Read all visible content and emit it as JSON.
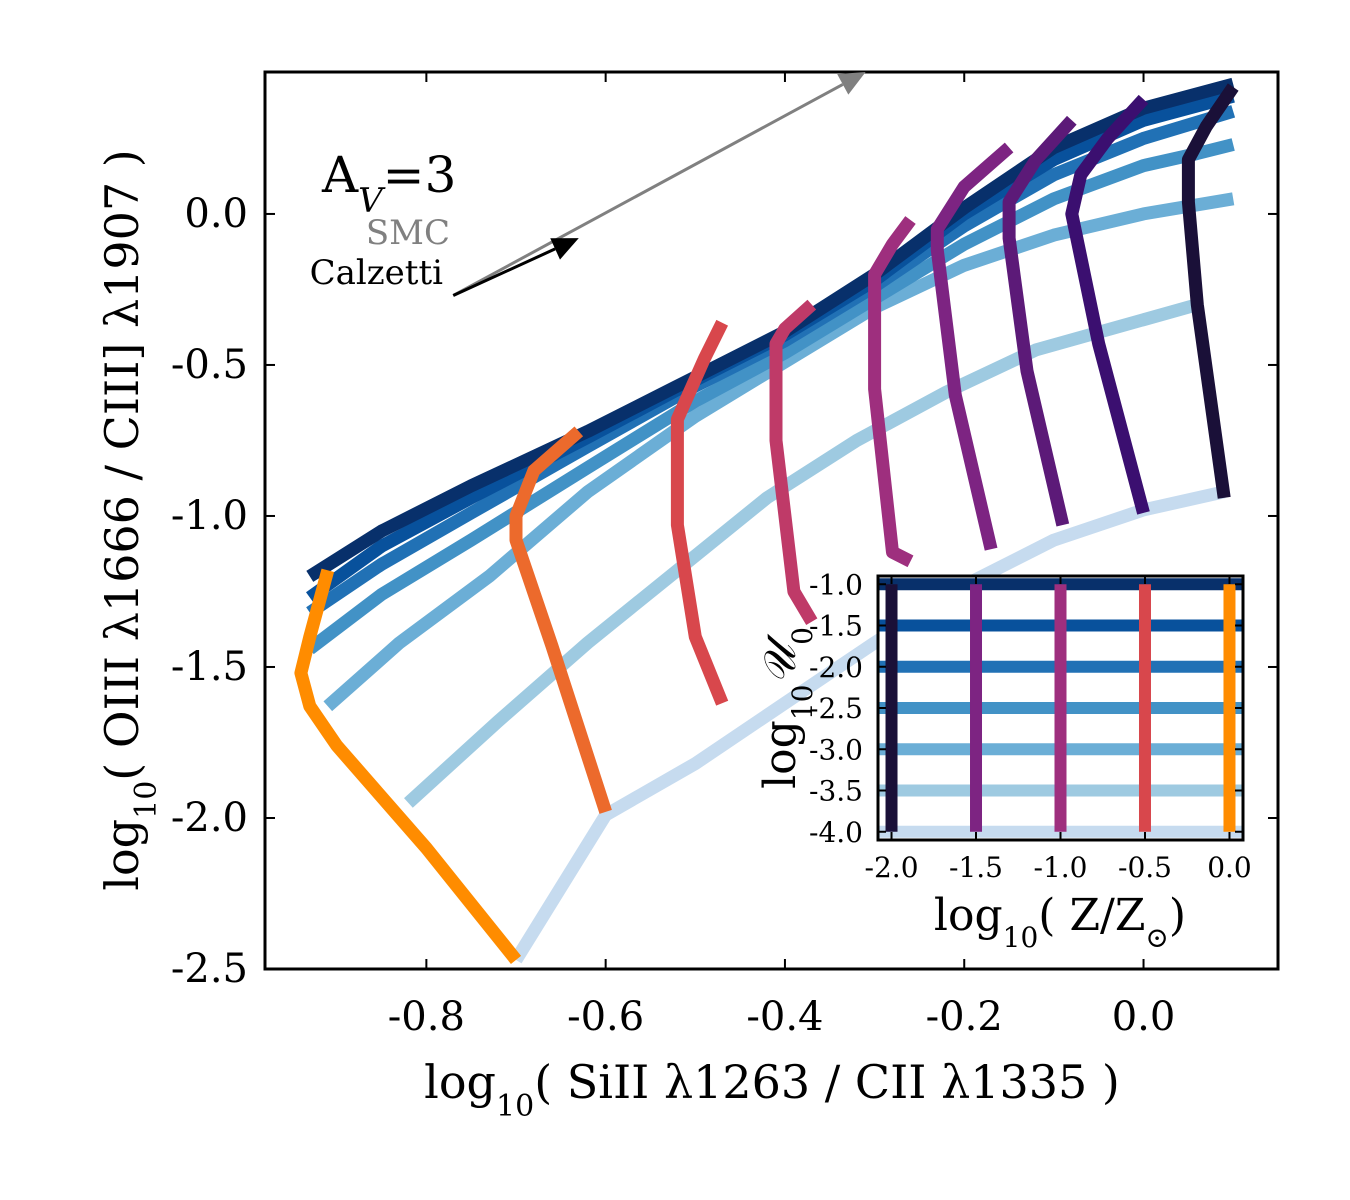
{
  "chart_data": {
    "type": "line",
    "main": {
      "xlabel": {
        "pre": "log",
        "sub": "10",
        "post": "( SiII λ1263 / CII λ1335 )"
      },
      "ylabel": {
        "pre": "log",
        "sub": "10",
        "post": "( OIII λ1666 / CIII] λ1907 )"
      },
      "xlim": [
        -0.98,
        0.15
      ],
      "ylim": [
        -2.5,
        0.47
      ],
      "xticks": [
        -0.8,
        -0.6,
        -0.4,
        -0.2,
        0.0
      ],
      "xtick_labels": [
        "-0.8",
        "-0.6",
        "-0.4",
        "-0.2",
        "0.0"
      ],
      "yticks": [
        -2.5,
        -2.0,
        -1.5,
        -1.0,
        -0.5,
        0.0
      ],
      "ytick_labels": [
        "-2.5",
        "-2.0",
        "-1.5",
        "-1.0",
        "-0.5",
        "0.0"
      ]
    },
    "annotation": {
      "av": {
        "pre": "A",
        "sub": "V",
        "post": "=3"
      },
      "smc_label": "SMC",
      "calzetti_label": "Calzetti",
      "smc_arrow": {
        "from": [
          -0.77,
          -0.27
        ],
        "to": [
          -0.31,
          0.47
        ]
      },
      "calzetti_arrow": {
        "from": [
          -0.77,
          -0.27
        ],
        "to": [
          -0.63,
          -0.08
        ]
      }
    },
    "colors": {
      "u": [
        "#08306b",
        "#08519c",
        "#2171b5",
        "#4292c6",
        "#6baed6",
        "#9ecae1",
        "#c6dbef"
      ],
      "z": [
        "#1a1038",
        "#3b0f70",
        "#5c1a78",
        "#7d2482",
        "#9e2f7e",
        "#bf3a68",
        "#d8474c",
        "#ec6a2c",
        "#ff8c00"
      ]
    },
    "u_series": [
      {
        "x": [
          -0.93,
          -0.85,
          -0.75,
          -0.62,
          -0.5,
          -0.4,
          -0.3,
          -0.2,
          -0.1,
          0.0,
          0.1
        ],
        "y": [
          -1.2,
          -1.05,
          -0.9,
          -0.72,
          -0.54,
          -0.39,
          -0.2,
          0.02,
          0.22,
          0.35,
          0.43
        ]
      },
      {
        "x": [
          -0.93,
          -0.85,
          -0.75,
          -0.62,
          -0.5,
          -0.4,
          -0.3,
          -0.2,
          -0.1,
          0.0,
          0.1
        ],
        "y": [
          -1.27,
          -1.1,
          -0.94,
          -0.74,
          -0.55,
          -0.4,
          -0.22,
          0.0,
          0.18,
          0.31,
          0.39
        ]
      },
      {
        "x": [
          -0.93,
          -0.85,
          -0.75,
          -0.62,
          -0.5,
          -0.4,
          -0.3,
          -0.2,
          -0.1,
          0.0,
          0.1
        ],
        "y": [
          -1.32,
          -1.16,
          -0.99,
          -0.77,
          -0.57,
          -0.42,
          -0.24,
          -0.04,
          0.13,
          0.25,
          0.34
        ]
      },
      {
        "x": [
          -0.93,
          -0.85,
          -0.75,
          -0.62,
          -0.5,
          -0.4,
          -0.3,
          -0.2,
          -0.1,
          0.0,
          0.06,
          0.1
        ],
        "y": [
          -1.44,
          -1.26,
          -1.08,
          -0.84,
          -0.62,
          -0.46,
          -0.28,
          -0.1,
          0.05,
          0.16,
          0.2,
          0.23
        ]
      },
      {
        "x": [
          -0.91,
          -0.83,
          -0.73,
          -0.62,
          -0.5,
          -0.4,
          -0.3,
          -0.2,
          -0.1,
          0.0,
          0.1
        ],
        "y": [
          -1.63,
          -1.42,
          -1.2,
          -0.92,
          -0.67,
          -0.49,
          -0.31,
          -0.17,
          -0.07,
          0.0,
          0.05
        ]
      },
      {
        "x": [
          -0.82,
          -0.72,
          -0.62,
          -0.52,
          -0.42,
          -0.32,
          -0.22,
          -0.12,
          0.0,
          0.06
        ],
        "y": [
          -1.95,
          -1.68,
          -1.42,
          -1.18,
          -0.94,
          -0.75,
          -0.59,
          -0.45,
          -0.35,
          -0.3
        ]
      },
      {
        "x": [
          -0.7,
          -0.6,
          -0.5,
          -0.4,
          -0.3,
          -0.2,
          -0.1,
          0.0,
          0.09
        ],
        "y": [
          -2.47,
          -1.99,
          -1.82,
          -1.62,
          -1.42,
          -1.23,
          -1.08,
          -0.98,
          -0.92
        ]
      }
    ],
    "z_series": [
      {
        "x": [
          0.1,
          0.07,
          0.05,
          0.05,
          0.06,
          0.09
        ],
        "y": [
          0.42,
          0.29,
          0.18,
          0.04,
          -0.3,
          -0.94
        ]
      },
      {
        "x": [
          0.0,
          -0.04,
          -0.07,
          -0.08,
          -0.05,
          0.0
        ],
        "y": [
          0.38,
          0.25,
          0.13,
          0.0,
          -0.43,
          -0.99
        ]
      },
      {
        "x": [
          -0.08,
          -0.12,
          -0.15,
          -0.15,
          -0.13,
          -0.09
        ],
        "y": [
          0.31,
          0.18,
          0.04,
          -0.08,
          -0.52,
          -1.03
        ]
      },
      {
        "x": [
          -0.15,
          -0.2,
          -0.23,
          -0.23,
          -0.21,
          -0.17
        ],
        "y": [
          0.22,
          0.09,
          -0.05,
          -0.12,
          -0.6,
          -1.11
        ]
      },
      {
        "x": [
          -0.26,
          -0.28,
          -0.3,
          -0.3,
          -0.28,
          -0.26
        ],
        "y": [
          -0.02,
          -0.1,
          -0.2,
          -0.58,
          -1.12,
          -1.15
        ]
      },
      {
        "x": [
          -0.37,
          -0.4,
          -0.41,
          -0.41,
          -0.39,
          -0.37
        ],
        "y": [
          -0.3,
          -0.38,
          -0.43,
          -0.75,
          -1.25,
          -1.35
        ]
      },
      {
        "x": [
          -0.47,
          -0.49,
          -0.52,
          -0.52,
          -0.5,
          -0.47
        ],
        "y": [
          -0.36,
          -0.48,
          -0.68,
          -1.03,
          -1.4,
          -1.62
        ]
      },
      {
        "x": [
          -0.63,
          -0.68,
          -0.7,
          -0.7,
          -0.66,
          -0.6
        ],
        "y": [
          -0.72,
          -0.85,
          -1.0,
          -1.08,
          -1.43,
          -1.98
        ]
      },
      {
        "x": [
          -0.91,
          -0.93,
          -0.94,
          -0.93,
          -0.9,
          -0.8,
          -0.7
        ],
        "y": [
          -1.18,
          -1.4,
          -1.52,
          -1.63,
          -1.76,
          -2.1,
          -2.47
        ]
      }
    ],
    "inset": {
      "xlabel": {
        "pre": "log",
        "sub": "10",
        "post": "( Z/Z",
        "sun": "⊙",
        "close": ")"
      },
      "ylabel": {
        "pre": "log",
        "sub": "10",
        "post": "𝒰",
        "sub2": "0"
      },
      "xlim": [
        -2.08,
        0.08
      ],
      "ylim": [
        -4.1,
        -0.9
      ],
      "xticks": [
        -2.0,
        -1.5,
        -1.0,
        -0.5,
        0.0
      ],
      "xtick_labels": [
        "-2.0",
        "-1.5",
        "-1.0",
        "-0.5",
        "0.0"
      ],
      "yticks": [
        -4.0,
        -3.5,
        -3.0,
        -2.5,
        -2.0,
        -1.5,
        -1.0
      ],
      "ytick_labels": [
        "-4.0",
        "-3.5",
        "-3.0",
        "-2.5",
        "-2.0",
        "-1.5",
        "-1.0"
      ],
      "h_values": [
        -1.0,
        -1.5,
        -2.0,
        -2.5,
        -3.0,
        -3.5,
        -4.0
      ],
      "v_values": [
        -2.0,
        -1.5,
        -1.0,
        -0.5,
        0.0
      ],
      "v_color_index": [
        0,
        3,
        4,
        6,
        8
      ]
    }
  }
}
